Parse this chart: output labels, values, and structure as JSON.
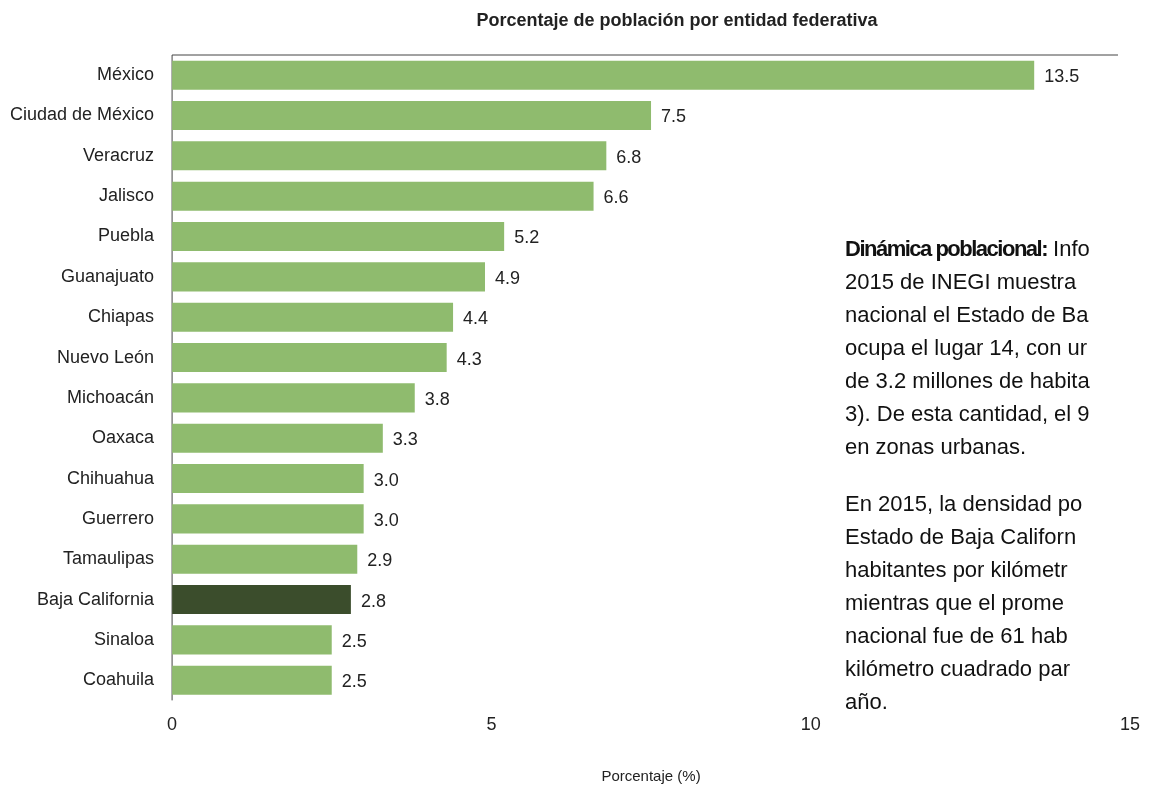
{
  "chart_data": {
    "type": "bar",
    "orientation": "horizontal",
    "title": "Porcentaje de población por entidad federativa",
    "xlabel": "Porcentaje (%)",
    "categories": [
      "México",
      "Ciudad de México",
      "Veracruz",
      "Jalisco",
      "Puebla",
      "Guanajuato",
      "Chiapas",
      "Nuevo León",
      "Michoacán",
      "Oaxaca",
      "Chihuahua",
      "Guerrero",
      "Tamaulipas",
      "Baja California",
      "Sinaloa",
      "Coahuila"
    ],
    "values": [
      13.5,
      7.5,
      6.8,
      6.6,
      5.2,
      4.9,
      4.4,
      4.3,
      3.8,
      3.3,
      3.0,
      3.0,
      2.9,
      2.8,
      2.5,
      2.5
    ],
    "value_labels": [
      "13.5",
      "7.5",
      "6.8",
      "6.6",
      "5.2",
      "4.9",
      "4.4",
      "4.3",
      "3.8",
      "3.3",
      "3.0",
      "3.0",
      "2.9",
      "2.8",
      "2.5",
      "2.5"
    ],
    "colors": [
      "#8fbb6e",
      "#8fbb6e",
      "#8fbb6e",
      "#8fbb6e",
      "#8fbb6e",
      "#8fbb6e",
      "#8fbb6e",
      "#8fbb6e",
      "#8fbb6e",
      "#8fbb6e",
      "#8fbb6e",
      "#8fbb6e",
      "#8fbb6e",
      "#3b4d2c",
      "#8fbb6e",
      "#8fbb6e"
    ],
    "xlim": [
      0,
      15
    ],
    "xticks": [
      0,
      5,
      10,
      15
    ],
    "grid": false,
    "legend": false,
    "annotations": [
      "Dinámica poblacional: Info\n2015 de INEGI muestra\nnacional el Estado de Ba\nocupa el lugar 14, con ur\nde 3.2 millones de habita\n3). De esta cantidad, el 9\nen zonas urbanas.",
      "En 2015, la densidad po\nEstado de Baja Californ\nhabitantes por kilómetr\nmientras que el prome\nnacional fue de 61 hab\nkilómetro cuadrado par\naño."
    ]
  }
}
